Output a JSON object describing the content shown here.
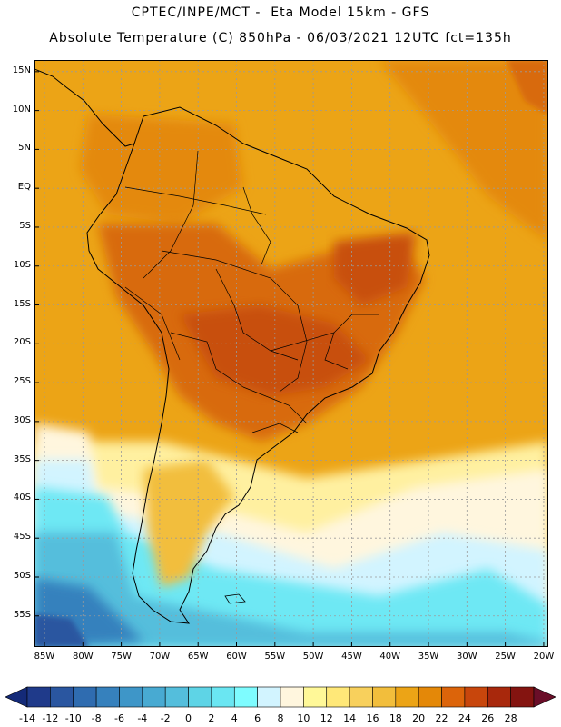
{
  "title_line1": "CPTEC/INPE/MCT -  Eta Model 15km - GFS",
  "title_line2": "Absolute Temperature (C) 850hPa - 06/03/2021 12UTC fct=135h",
  "latitude_labels": [
    "15N",
    "10N",
    "5N",
    "EQ",
    "5S",
    "10S",
    "15S",
    "20S",
    "25S",
    "30S",
    "35S",
    "40S",
    "45S",
    "50S",
    "55S"
  ],
  "latitude_values": [
    15,
    10,
    5,
    0,
    -5,
    -10,
    -15,
    -20,
    -25,
    -30,
    -35,
    -40,
    -45,
    -50,
    -55
  ],
  "longitude_labels": [
    "85W",
    "80W",
    "75W",
    "70W",
    "65W",
    "60W",
    "55W",
    "50W",
    "45W",
    "40W",
    "35W",
    "30W",
    "25W",
    "20W"
  ],
  "longitude_values": [
    -85,
    -80,
    -75,
    -70,
    -65,
    -60,
    -55,
    -50,
    -45,
    -40,
    -35,
    -30,
    -25,
    -20
  ],
  "colorbar": {
    "labels": [
      "-14",
      "-12",
      "-10",
      "-8",
      "-6",
      "-4",
      "-2",
      "0",
      "2",
      "4",
      "6",
      "8",
      "10",
      "12",
      "14",
      "16",
      "18",
      "20",
      "22",
      "24",
      "26",
      "28"
    ],
    "colors": [
      "#1f3a8a",
      "#2a56a0",
      "#2f6cb0",
      "#3681bd",
      "#3e96c8",
      "#48aad2",
      "#54bedc",
      "#5ed4e6",
      "#6ae6f2",
      "#7efcff",
      "#d2f4ff",
      "#fff6de",
      "#fff898",
      "#ffe878",
      "#f8d05c",
      "#f2be3c",
      "#eca416",
      "#e48808",
      "#dc640a",
      "#c8460c",
      "#a8280c",
      "#841410"
    ],
    "low_end_color": "#142a78",
    "high_end_color": "#6a0e28"
  },
  "colors": {
    "ocean_warm": "#eca416",
    "land_hot": "#d86a10",
    "land_very_hot": "#c8500a",
    "warm_orange": "#e4890c",
    "cool_yellow": "#fff0a0",
    "cream": "#fff6de",
    "pale_cyan": "#d2f4ff",
    "cyan": "#6ee8f4",
    "light_blue": "#54bedc",
    "blue": "#3681bd",
    "deep_blue": "#2a56a0",
    "coast": "#000000",
    "grid": "#9a9a9a"
  }
}
